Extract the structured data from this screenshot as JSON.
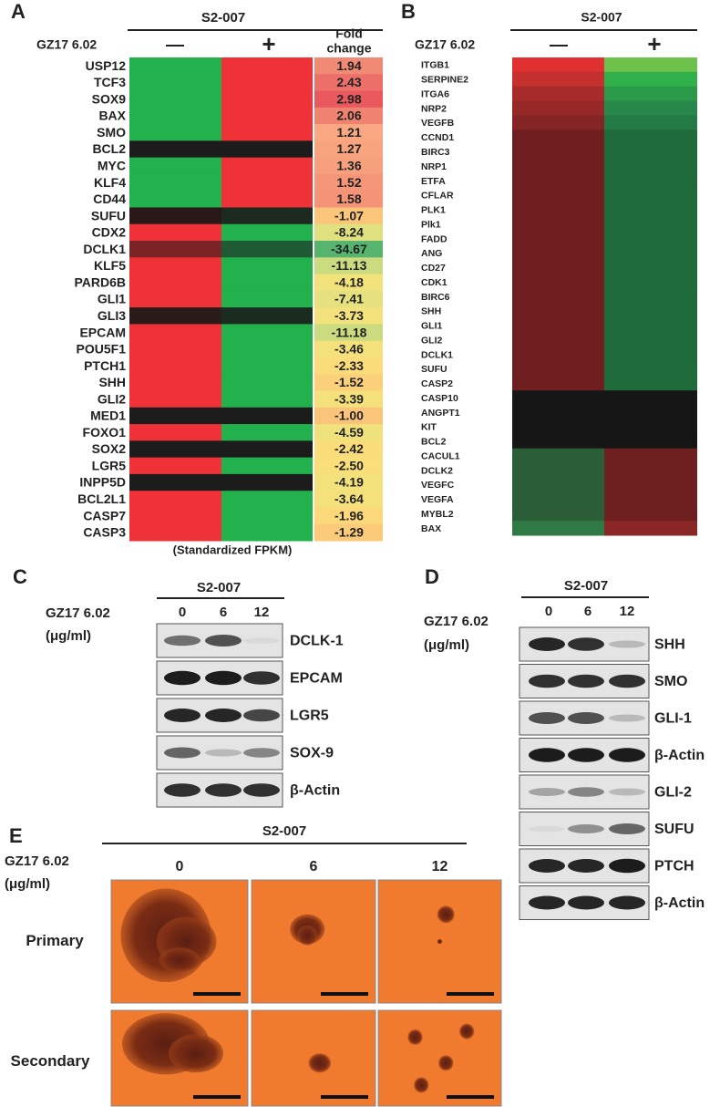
{
  "panel_a": {
    "label": "A",
    "group": "S2-007",
    "treatment": "GZ17 6.02",
    "minus": "—",
    "plus": "+",
    "fold_header": [
      "Fold",
      "change"
    ],
    "footer": "(Standardized FPKM)",
    "rows": [
      {
        "gene": "USP12",
        "minus_color": "#22b14c",
        "plus_color": "#ee3237",
        "fold_change": "1.94",
        "fold_color": "#f18a75"
      },
      {
        "gene": "TCF3",
        "minus_color": "#22b14c",
        "plus_color": "#ee3237",
        "fold_change": "2.43",
        "fold_color": "#ec7069"
      },
      {
        "gene": "SOX9",
        "minus_color": "#22b14c",
        "plus_color": "#ee3237",
        "fold_change": "2.98",
        "fold_color": "#e8585d"
      },
      {
        "gene": "BAX",
        "minus_color": "#22b14c",
        "plus_color": "#ee3237",
        "fold_change": "2.06",
        "fold_color": "#ef8270"
      },
      {
        "gene": "SMO",
        "minus_color": "#22b14c",
        "plus_color": "#ee3237",
        "fold_change": "1.21",
        "fold_color": "#f9a882"
      },
      {
        "gene": "BCL2",
        "minus_color": "#1c1c1c",
        "plus_color": "#1c1c1c",
        "fold_change": "1.27",
        "fold_color": "#f8a47f"
      },
      {
        "gene": "MYC",
        "minus_color": "#22b14c",
        "plus_color": "#ee3237",
        "fold_change": "1.36",
        "fold_color": "#f6a07e"
      },
      {
        "gene": "KLF4",
        "minus_color": "#22b14c",
        "plus_color": "#ee3237",
        "fold_change": "1.52",
        "fold_color": "#f59579"
      },
      {
        "gene": "CD44",
        "minus_color": "#22b14c",
        "plus_color": "#ee3237",
        "fold_change": "1.58",
        "fold_color": "#f49378"
      },
      {
        "gene": "SUFU",
        "minus_color": "#2a1717",
        "plus_color": "#1d2a20",
        "fold_change": "-1.07",
        "fold_color": "#fbc679"
      },
      {
        "gene": "CDX2",
        "minus_color": "#ee3237",
        "plus_color": "#22b14c",
        "fold_change": "-8.24",
        "fold_color": "#dfe07f"
      },
      {
        "gene": "DCLK1",
        "minus_color": "#7a2426",
        "plus_color": "#1e5a34",
        "fold_change": "-34.67",
        "fold_color": "#57b46f"
      },
      {
        "gene": "KLF5",
        "minus_color": "#ee3237",
        "plus_color": "#22b14c",
        "fold_change": "-11.13",
        "fold_color": "#cbdb80"
      },
      {
        "gene": "PARD6B",
        "minus_color": "#ee3237",
        "plus_color": "#22b14c",
        "fold_change": "-4.18",
        "fold_color": "#f2e27c"
      },
      {
        "gene": "GLI1",
        "minus_color": "#ee3237",
        "plus_color": "#22b14c",
        "fold_change": "-7.41",
        "fold_color": "#e4e17e"
      },
      {
        "gene": "GLI3",
        "minus_color": "#2b1a1a",
        "plus_color": "#1a2b20",
        "fold_change": "-3.73",
        "fold_color": "#f3e27b"
      },
      {
        "gene": "EPCAM",
        "minus_color": "#ee3237",
        "plus_color": "#22b14c",
        "fold_change": "-11.18",
        "fold_color": "#cbdb80"
      },
      {
        "gene": "POU5F1",
        "minus_color": "#ee3237",
        "plus_color": "#22b14c",
        "fold_change": "-3.46",
        "fold_color": "#f4e17b"
      },
      {
        "gene": "PTCH1",
        "minus_color": "#ee3237",
        "plus_color": "#22b14c",
        "fold_change": "-2.33",
        "fold_color": "#fadd7a"
      },
      {
        "gene": "SHH",
        "minus_color": "#ee3237",
        "plus_color": "#22b14c",
        "fold_change": "-1.52",
        "fold_color": "#fbd07a"
      },
      {
        "gene": "GLI2",
        "minus_color": "#ee3237",
        "plus_color": "#22b14c",
        "fold_change": "-3.39",
        "fold_color": "#f5e17b"
      },
      {
        "gene": "MED1",
        "minus_color": "#1c1c1c",
        "plus_color": "#1c1c1c",
        "fold_change": "-1.00",
        "fold_color": "#fbc47a"
      },
      {
        "gene": "FOXO1",
        "minus_color": "#ee3237",
        "plus_color": "#22b14c",
        "fold_change": "-4.59",
        "fold_color": "#efe27c"
      },
      {
        "gene": "SOX2",
        "minus_color": "#1c1c1c",
        "plus_color": "#1c1c1c",
        "fold_change": "-2.42",
        "fold_color": "#f9dd7a"
      },
      {
        "gene": "LGR5",
        "minus_color": "#ee3237",
        "plus_color": "#22b14c",
        "fold_change": "-2.50",
        "fold_color": "#f9de7a"
      },
      {
        "gene": "INPP5D",
        "minus_color": "#1c1c1c",
        "plus_color": "#1c1c1c",
        "fold_change": "-4.19",
        "fold_color": "#f1e27c"
      },
      {
        "gene": "BCL2L1",
        "minus_color": "#ee3237",
        "plus_color": "#22b14c",
        "fold_change": "-3.64",
        "fold_color": "#f4e17b"
      },
      {
        "gene": "CASP7",
        "minus_color": "#ee3237",
        "plus_color": "#22b14c",
        "fold_change": "-1.96",
        "fold_color": "#fbd87a"
      },
      {
        "gene": "CASP3",
        "minus_color": "#ee3237",
        "plus_color": "#22b14c",
        "fold_change": "-1.29",
        "fold_color": "#fbcb7a"
      }
    ]
  },
  "panel_b": {
    "label": "B",
    "group": "S2-007",
    "treatment": "GZ17 6.02",
    "minus": "—",
    "plus": "+",
    "rows": [
      {
        "gene": "ITGB1",
        "minus_color": "#e0302f",
        "plus_color": "#6cc24a"
      },
      {
        "gene": "SERPINE2",
        "minus_color": "#c4302e",
        "plus_color": "#2fb04a"
      },
      {
        "gene": "ITGA6",
        "minus_color": "#a82b2b",
        "plus_color": "#2a9a48"
      },
      {
        "gene": "NRP2",
        "minus_color": "#962828",
        "plus_color": "#28874a"
      },
      {
        "gene": "VEGFB",
        "minus_color": "#842424",
        "plus_color": "#247a44"
      },
      {
        "gene": "CCND1",
        "minus_color": "#6e1e1e",
        "plus_color": "#1f6b3c"
      },
      {
        "gene": "BIRC3",
        "minus_color": "#6e1e1e",
        "plus_color": "#1f6b3c"
      },
      {
        "gene": "NRP1",
        "minus_color": "#6e1e1e",
        "plus_color": "#1f6b3c"
      },
      {
        "gene": "ETFA",
        "minus_color": "#6e1e1e",
        "plus_color": "#1f6b3c"
      },
      {
        "gene": "CFLAR",
        "minus_color": "#6e1e1e",
        "plus_color": "#1f6b3c"
      },
      {
        "gene": "PLK1",
        "minus_color": "#6e1e1e",
        "plus_color": "#1f6b3c"
      },
      {
        "gene": "Plk1",
        "minus_color": "#6e1e1e",
        "plus_color": "#1f6b3c"
      },
      {
        "gene": "FADD",
        "minus_color": "#6e1e1e",
        "plus_color": "#1f6b3c"
      },
      {
        "gene": "ANG",
        "minus_color": "#6e1e1e",
        "plus_color": "#1f6b3c"
      },
      {
        "gene": "CD27",
        "minus_color": "#6e1e1e",
        "plus_color": "#1f6b3c"
      },
      {
        "gene": "CDK1",
        "minus_color": "#6e1e1e",
        "plus_color": "#1f6b3c"
      },
      {
        "gene": "BIRC6",
        "minus_color": "#6e1e1e",
        "plus_color": "#1f6b3c"
      },
      {
        "gene": "SHH",
        "minus_color": "#6e1e1e",
        "plus_color": "#1f6b3c"
      },
      {
        "gene": "GLI1",
        "minus_color": "#6e1e1e",
        "plus_color": "#1f6b3c"
      },
      {
        "gene": "GLI2",
        "minus_color": "#6e1e1e",
        "plus_color": "#1f6b3c"
      },
      {
        "gene": "DCLK1",
        "minus_color": "#6e1e1e",
        "plus_color": "#1f6b3c"
      },
      {
        "gene": "SUFU",
        "minus_color": "#6e1e1e",
        "plus_color": "#1f6b3c"
      },
      {
        "gene": "CASP2",
        "minus_color": "#6e1e1e",
        "plus_color": "#1f6b3c"
      },
      {
        "gene": "CASP10",
        "minus_color": "#161616",
        "plus_color": "#161616"
      },
      {
        "gene": "ANGPT1",
        "minus_color": "#161616",
        "plus_color": "#161616"
      },
      {
        "gene": "KIT",
        "minus_color": "#161616",
        "plus_color": "#161616"
      },
      {
        "gene": "BCL2",
        "minus_color": "#161616",
        "plus_color": "#161616"
      },
      {
        "gene": "CACUL1",
        "minus_color": "#2b5e37",
        "plus_color": "#6e1f1f"
      },
      {
        "gene": "DCLK2",
        "minus_color": "#2b5e37",
        "plus_color": "#6e1f1f"
      },
      {
        "gene": "VEGFC",
        "minus_color": "#2b5e37",
        "plus_color": "#6e1f1f"
      },
      {
        "gene": "VEGFA",
        "minus_color": "#2b5e37",
        "plus_color": "#6e1f1f"
      },
      {
        "gene": "MYBL2",
        "minus_color": "#2b5e37",
        "plus_color": "#6e1f1f"
      },
      {
        "gene": "BAX",
        "minus_color": "#2f7a44",
        "plus_color": "#8a2626"
      }
    ]
  },
  "panel_c": {
    "label": "C",
    "group": "S2-007",
    "treatment": "GZ17 6.02",
    "unit": "(μg/ml)",
    "doses": [
      0,
      6,
      12
    ],
    "blots": [
      "DCLK-1",
      "EPCAM",
      "LGR5",
      "SOX-9",
      "β-Actin"
    ]
  },
  "panel_d": {
    "label": "D",
    "group": "S2-007",
    "treatment": "GZ17 6.02",
    "unit": "(μg/ml)",
    "doses": [
      0,
      6,
      12
    ],
    "blots": [
      "SHH",
      "SMO",
      "GLI-1",
      "β-Actin",
      "GLI-2",
      "SUFU",
      "PTCH",
      "β-Actin"
    ]
  },
  "panel_e": {
    "label": "E",
    "group": "S2-007",
    "treatment": "GZ17 6.02",
    "unit": "(μg/ml)",
    "doses": [
      0,
      6,
      12
    ],
    "rows": [
      "Primary",
      "Secondary"
    ]
  }
}
